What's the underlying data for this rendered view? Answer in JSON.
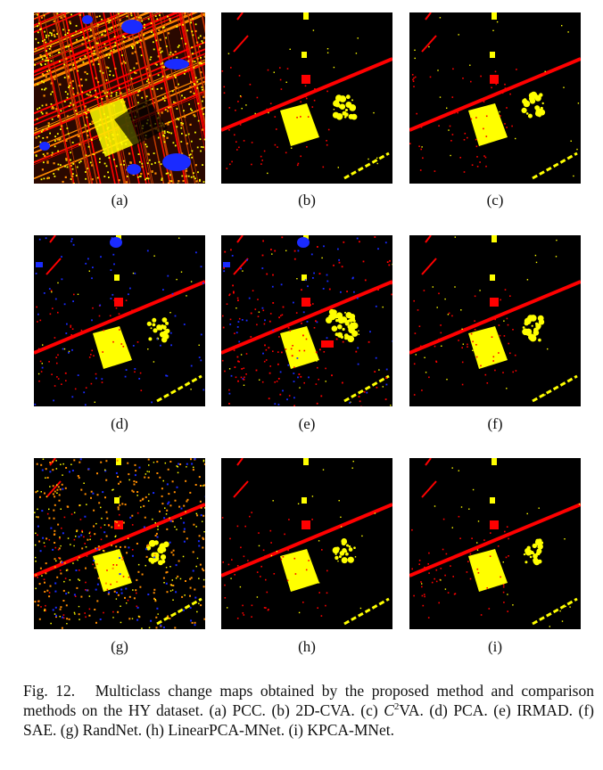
{
  "panels": [
    {
      "label": "(a)",
      "style": "dense"
    },
    {
      "label": "(b)",
      "style": "clean"
    },
    {
      "label": "(c)",
      "style": "clean"
    },
    {
      "label": "(d)",
      "style": "blue"
    },
    {
      "label": "(e)",
      "style": "noisy"
    },
    {
      "label": "(f)",
      "style": "clean"
    },
    {
      "label": "(g)",
      "style": "orange"
    },
    {
      "label": "(h)",
      "style": "clean"
    },
    {
      "label": "(i)",
      "style": "clean"
    }
  ],
  "caption": {
    "fig_label": "Fig. 12.",
    "text_before": "Multiclass change maps obtained by the proposed method and comparison methods on the HY dataset. (a) PCC. (b) 2D-CVA. (c) ",
    "c_letter": "C",
    "c_sup": "2",
    "text_after": "VA. (d) PCA. (e) IRMAD. (f) SAE. (g) RandNet. (h) LinearPCA-MNet. (i) KPCA-MNet."
  },
  "colors": {
    "background": "#000000",
    "yellow": "#ffff00",
    "red": "#ff0000",
    "blue": "#1a2bff",
    "orange": "#ff8c00"
  }
}
